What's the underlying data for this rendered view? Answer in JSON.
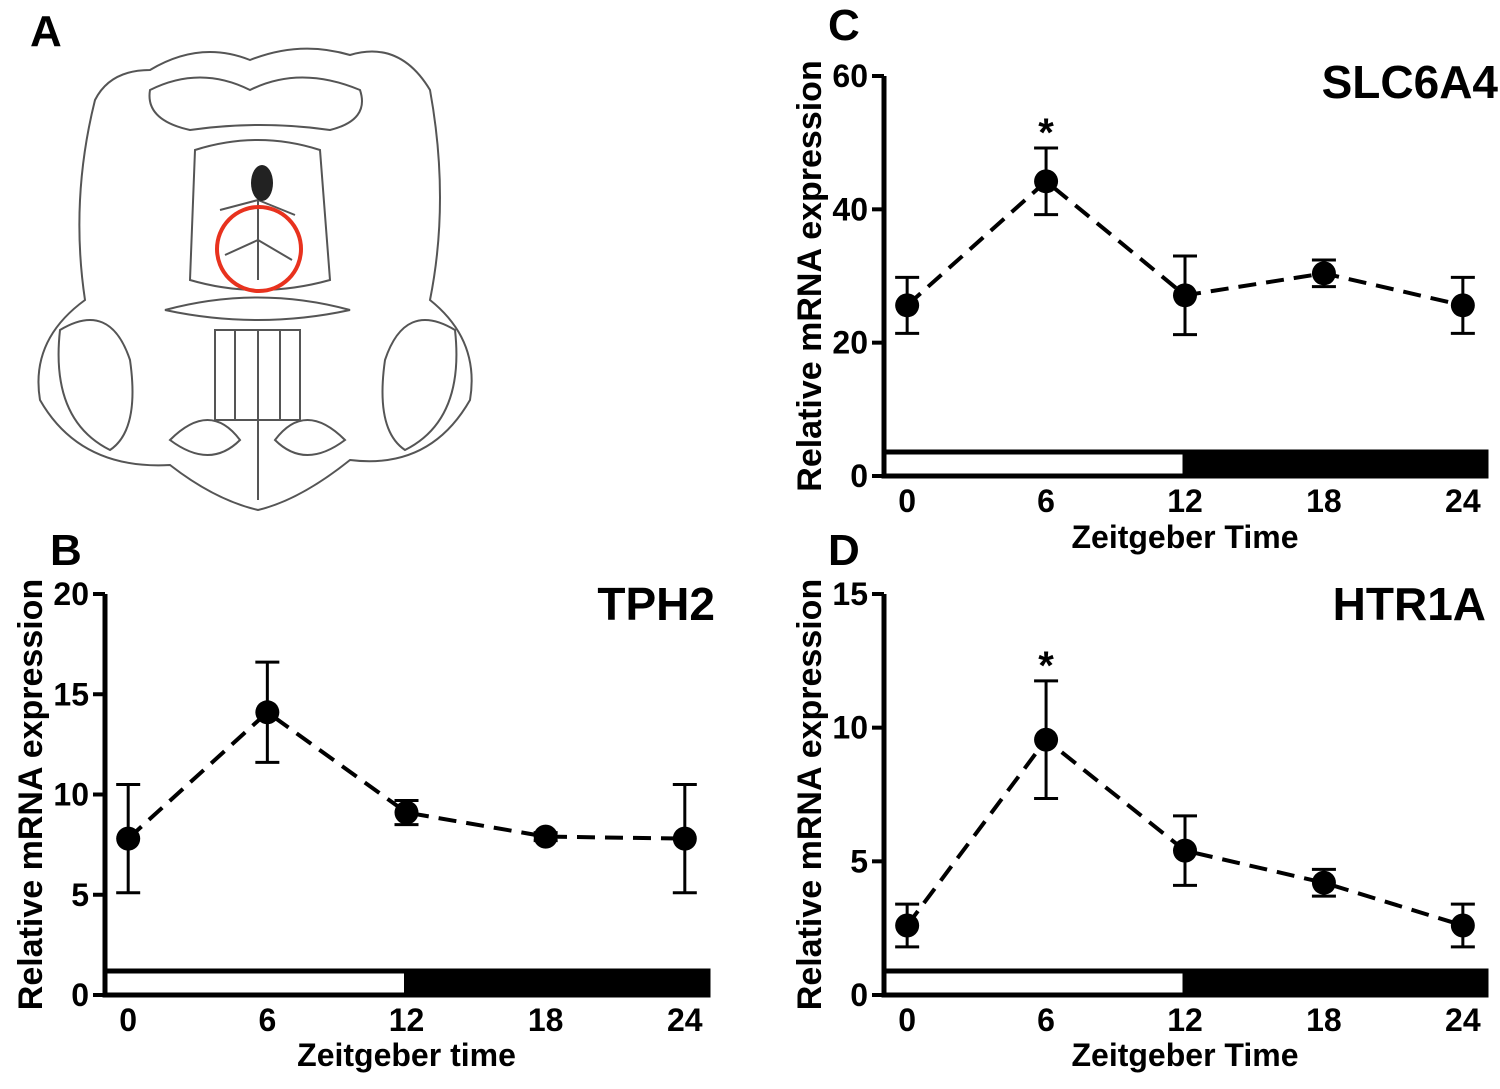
{
  "diagram": {
    "panel": "A"
  },
  "chart_data": [
    {
      "type": "line",
      "panel": "B",
      "title": "TPH2",
      "xlabel": "Zeitgeber time",
      "ylabel": "Relative mRNA expression",
      "x": [
        0,
        6,
        12,
        18,
        24
      ],
      "values": [
        7.8,
        14.1,
        9.1,
        7.9,
        7.8
      ],
      "errors": [
        2.7,
        2.5,
        0.6,
        0.2,
        2.7
      ],
      "color": "#000000",
      "xlim": [
        -1,
        25
      ],
      "xticks": [
        0,
        6,
        12,
        18,
        24
      ],
      "ylim": [
        0,
        20
      ],
      "yticks": [
        0,
        5,
        10,
        15,
        20
      ]
    },
    {
      "type": "line",
      "panel": "C",
      "title": "SLC6A4",
      "xlabel": "Zeitgeber Time",
      "ylabel": "Relative mRNA expression",
      "x": [
        0,
        6,
        12,
        18,
        24
      ],
      "values": [
        25.6,
        44.2,
        27.1,
        30.4,
        25.6
      ],
      "errors": [
        4.2,
        5,
        5.9,
        2,
        4.2
      ],
      "annotations": [
        {
          "text": "*",
          "x": 6
        }
      ],
      "color": "#000000",
      "xlim": [
        -1,
        25
      ],
      "xticks": [
        0,
        6,
        12,
        18,
        24
      ],
      "ylim": [
        0,
        60
      ],
      "yticks": [
        0,
        20,
        40,
        60
      ]
    },
    {
      "type": "line",
      "panel": "D",
      "title": "HTR1A",
      "xlabel": "Zeitgeber Time",
      "ylabel": "Relative mRNA expression",
      "x": [
        0,
        6,
        12,
        18,
        24
      ],
      "values": [
        2.6,
        9.55,
        5.4,
        4.2,
        2.6
      ],
      "errors": [
        0.8,
        2.2,
        1.3,
        0.5,
        0.8
      ],
      "annotations": [
        {
          "text": "*",
          "x": 6
        }
      ],
      "color": "#000000",
      "xlim": [
        -1,
        25
      ],
      "xticks": [
        0,
        6,
        12,
        18,
        24
      ],
      "ylim": [
        0,
        15
      ],
      "yticks": [
        0,
        5,
        10,
        15
      ]
    }
  ]
}
